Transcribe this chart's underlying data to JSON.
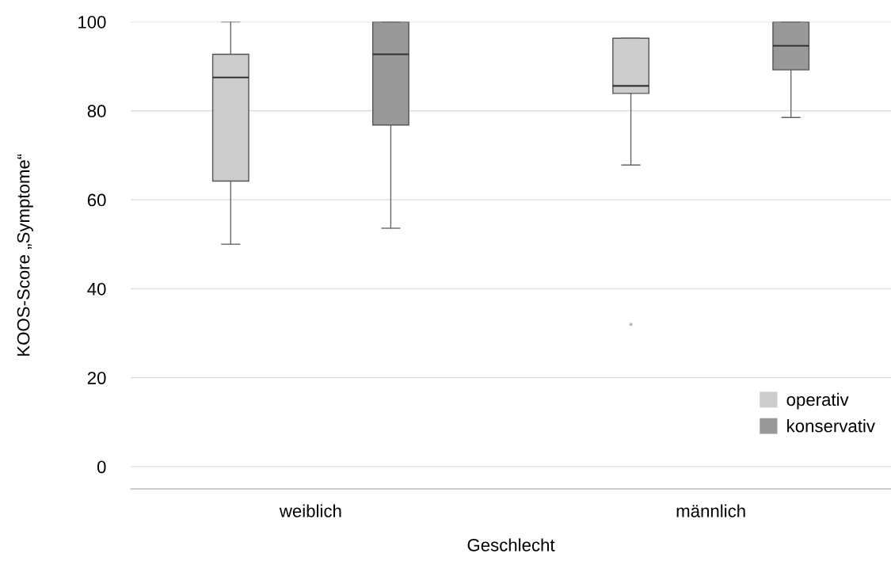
{
  "chart_data": {
    "type": "box",
    "xlabel": "Geschlecht",
    "ylabel": "KOOS-Score „Symptome“",
    "categories": [
      "weiblich",
      "männlich"
    ],
    "series": [
      {
        "name": "operativ",
        "color": "#cccccc",
        "boxes": [
          {
            "low": 50,
            "q1": 64.2,
            "median": 87.5,
            "q3": 92.7,
            "high": 100
          },
          {
            "low": 67.8,
            "q1": 83.9,
            "median": 85.6,
            "q3": 96.3,
            "high": 96.3,
            "outliers": [
              32
            ]
          }
        ]
      },
      {
        "name": "konservativ",
        "color": "#999999",
        "boxes": [
          {
            "low": 53.6,
            "q1": 76.8,
            "median": 92.7,
            "q3": 100,
            "high": 100
          },
          {
            "low": 78.5,
            "q1": 89.2,
            "median": 94.6,
            "q3": 100,
            "high": 100
          }
        ]
      }
    ],
    "ylim": [
      -5,
      100
    ],
    "yticks": [
      0,
      20,
      40,
      60,
      80,
      100
    ],
    "grid": "y",
    "legend": "bottom right"
  }
}
